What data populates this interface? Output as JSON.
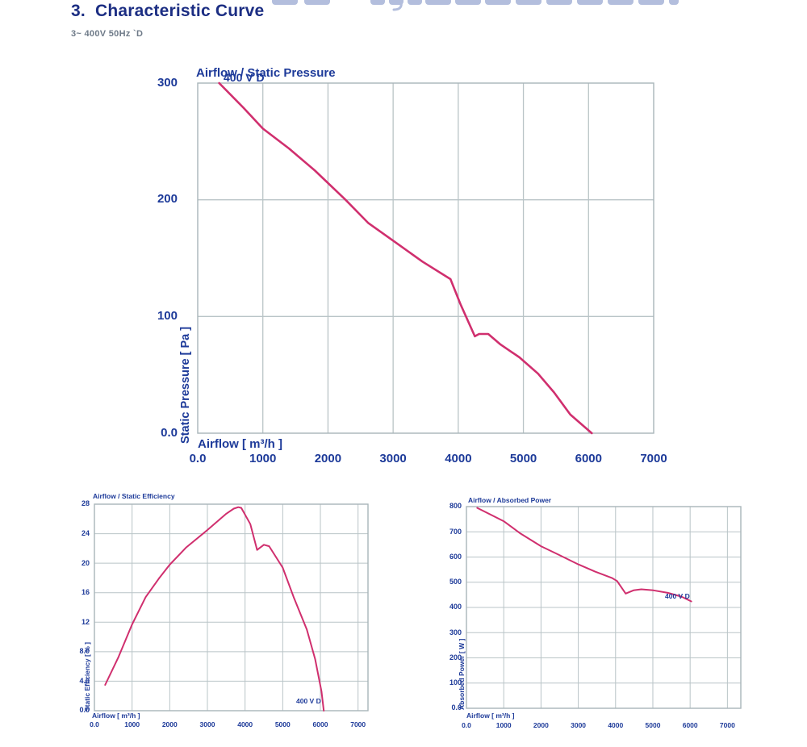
{
  "page": {
    "title": "3.  Characteristic Curve",
    "subtitle": "3~ 400V 50Hz `D",
    "watermark": {
      "name": "cropped-header-text",
      "color": "#b3bedd"
    },
    "colors": {
      "doc_title": "#1c2e83",
      "doc_subtitle": "#6e7a88",
      "chart_text": "#1d3a99",
      "curve": "#d02f6e",
      "grid": "#b9c4c7",
      "plot_border": "#a9b5b9"
    }
  },
  "chart_data": [
    {
      "id": "airflow_static_pressure",
      "type": "line",
      "title": "Airflow / Static Pressure",
      "legend": "400 V D",
      "xlabel": "Airflow [ m³/h ]",
      "ylabel": "Static Pressure [ Pa ]",
      "grid": true,
      "x_range": [
        0,
        7000
      ],
      "y_range": [
        0,
        300
      ],
      "x_tick_values": [
        0,
        1000,
        2000,
        3000,
        4000,
        5000,
        6000,
        7000
      ],
      "x_tick_labels": [
        "0.0",
        "1000",
        "2000",
        "3000",
        "4000",
        "5000",
        "6000",
        "7000"
      ],
      "y_tick_values": [
        300,
        200,
        100,
        0
      ],
      "y_tick_labels": [
        "300",
        "200",
        "100",
        "0.0"
      ],
      "series": [
        {
          "name": "400 V D",
          "points": [
            [
              330,
              300
            ],
            [
              700,
              279
            ],
            [
              1000,
              261
            ],
            [
              1400,
              244
            ],
            [
              1800,
              225
            ],
            [
              2270,
              200
            ],
            [
              2620,
              180
            ],
            [
              3000,
              165
            ],
            [
              3450,
              147
            ],
            [
              3880,
              132
            ],
            [
              4030,
              111
            ],
            [
              4255,
              83
            ],
            [
              4320,
              85
            ],
            [
              4460,
              85
            ],
            [
              4650,
              76
            ],
            [
              4940,
              65
            ],
            [
              5225,
              51
            ],
            [
              5470,
              35
            ],
            [
              5720,
              16
            ],
            [
              6050,
              0
            ]
          ]
        }
      ]
    },
    {
      "id": "airflow_static_efficiency",
      "type": "line",
      "title": "Airflow / Static Efficiency",
      "legend": "400 V D",
      "xlabel": "Airflow [ m³/h ]",
      "ylabel": "Static Efficiency [ % ]",
      "grid": true,
      "x_range": [
        0,
        7000
      ],
      "y_range": [
        0,
        28
      ],
      "x_tick_values": [
        0,
        1000,
        2000,
        3000,
        4000,
        5000,
        6000,
        7000
      ],
      "x_tick_labels": [
        "0.0",
        "1000",
        "2000",
        "3000",
        "4000",
        "5000",
        "6000",
        "7000"
      ],
      "y_tick_values": [
        28,
        24,
        20,
        16,
        12,
        8,
        4,
        0
      ],
      "y_tick_labels": [
        "28",
        "24",
        "20",
        "16",
        "12",
        "8.0",
        "4.0",
        "0.0"
      ],
      "series": [
        {
          "name": "400 V D",
          "points": [
            [
              285,
              3.5
            ],
            [
              640,
              7.3
            ],
            [
              1000,
              11.7
            ],
            [
              1360,
              15.4
            ],
            [
              1710,
              17.9
            ],
            [
              2000,
              19.8
            ],
            [
              2430,
              22.1
            ],
            [
              3000,
              24.5
            ],
            [
              3500,
              26.7
            ],
            [
              3700,
              27.4
            ],
            [
              3820,
              27.6
            ],
            [
              3900,
              27.5
            ],
            [
              4140,
              25.3
            ],
            [
              4320,
              21.8
            ],
            [
              4500,
              22.5
            ],
            [
              4640,
              22.3
            ],
            [
              5000,
              19.4
            ],
            [
              5290,
              15.4
            ],
            [
              5640,
              11
            ],
            [
              5860,
              7
            ],
            [
              6030,
              2.6
            ],
            [
              6090,
              0
            ]
          ]
        }
      ]
    },
    {
      "id": "airflow_absorbed_power",
      "type": "line",
      "title": "Airflow / Absorbed Power",
      "legend": "400 V D",
      "xlabel": "Airflow [ m³/h ]",
      "ylabel": "Absorbed Power [ W ]",
      "grid": true,
      "x_range": [
        0,
        7000
      ],
      "y_range": [
        0,
        800
      ],
      "x_tick_values": [
        0,
        1000,
        2000,
        3000,
        4000,
        5000,
        6000,
        7000
      ],
      "x_tick_labels": [
        "0.0",
        "1000",
        "2000",
        "3000",
        "4000",
        "5000",
        "6000",
        "7000"
      ],
      "y_tick_values": [
        800,
        700,
        600,
        500,
        400,
        300,
        200,
        100,
        0
      ],
      "y_tick_labels": [
        "800",
        "700",
        "600",
        "500",
        "400",
        "300",
        "200",
        "100",
        "0.0"
      ],
      "series": [
        {
          "name": "400 V D",
          "points": [
            [
              290,
              795
            ],
            [
              1000,
              742
            ],
            [
              1450,
              693
            ],
            [
              2000,
              643
            ],
            [
              2450,
              611
            ],
            [
              3000,
              571
            ],
            [
              3450,
              542
            ],
            [
              3900,
              517
            ],
            [
              4040,
              505
            ],
            [
              4270,
              455
            ],
            [
              4480,
              468
            ],
            [
              4690,
              472
            ],
            [
              5015,
              468
            ],
            [
              5400,
              458
            ],
            [
              5770,
              443
            ],
            [
              6030,
              424
            ]
          ]
        }
      ]
    }
  ]
}
